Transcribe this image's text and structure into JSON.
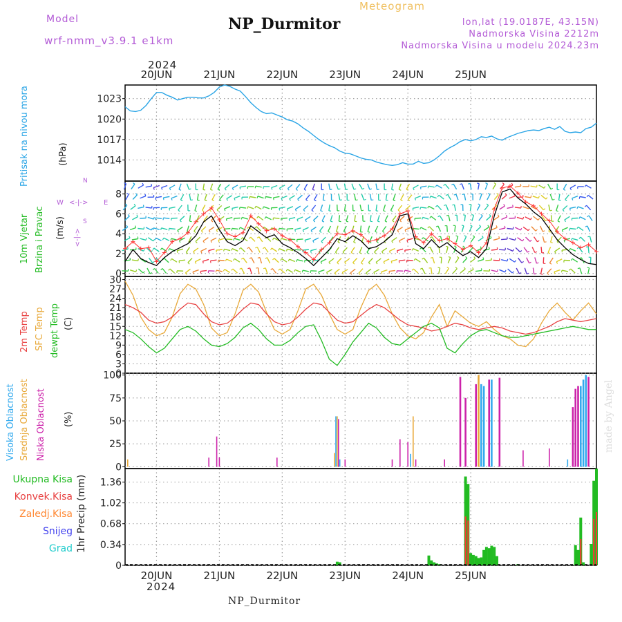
{
  "header": {
    "model_label": "Model",
    "model_name": "wrf-nmm_v3.9.1 e1km",
    "station_title": "NP_Durmitor",
    "meteogram_label": "Meteogram",
    "lonlat": "lon,lat (19.0187E, 43.15N)",
    "elevation": "Nadmorska Visina 2212m",
    "model_elevation": "Nadmorska Visina u modelu 2024.23m"
  },
  "footer": {
    "station": "NP_Durmitor",
    "made_by": "made by Angel"
  },
  "time_axis": {
    "year": "2024",
    "day_labels": [
      "20JUN",
      "21JUN",
      "22JUN",
      "23JUN",
      "24JUN",
      "25JUN"
    ]
  },
  "colors": {
    "pressure": "#2aa5e6",
    "wind_speed": "#000000",
    "wind_gust": "#ff3333",
    "temp_2m": "#e84040",
    "temp_sfc": "#e8a838",
    "dewpoint": "#22bb22",
    "cloud_high": "#33aaee",
    "cloud_mid": "#e8a838",
    "cloud_low": "#cc22aa",
    "rain_total": "#22bb22",
    "rain_conv": "#ff3333",
    "rain_frozen": "#ff8833",
    "snow": "#4444ee",
    "hail": "#22cccc",
    "grid": "#999999"
  },
  "chart_data": [
    {
      "type": "line",
      "name": "pressure",
      "ylabel_1": "Pritisak na nivou mora",
      "ylabel_2": "(hPa)",
      "yticks": [
        "1023",
        "1020",
        "1017",
        "1014"
      ],
      "ylim": [
        1010.9,
        1025.0
      ],
      "x_hours_from_20JUN00": [
        -12,
        -10,
        -8,
        -6,
        -4,
        -2,
        0,
        2,
        4,
        6,
        8,
        10,
        12,
        14,
        16,
        18,
        20,
        22,
        24,
        26,
        28,
        30,
        32,
        34,
        36,
        38,
        40,
        42,
        44,
        46,
        48,
        50,
        52,
        54,
        56,
        58,
        60,
        62,
        64,
        66,
        68,
        70,
        72,
        74,
        76,
        78,
        80,
        82,
        84,
        86,
        88,
        90,
        92,
        94,
        96,
        98,
        100,
        102,
        104,
        106,
        108,
        110,
        112,
        114,
        116,
        118,
        120,
        122,
        124,
        126,
        128,
        130,
        132,
        134,
        136,
        138,
        140,
        142,
        144,
        146,
        148,
        150,
        152,
        154,
        156,
        158,
        160,
        162,
        164,
        166,
        168
      ],
      "values": [
        1021.8,
        1021.2,
        1021.1,
        1021.3,
        1022.0,
        1023.0,
        1023.9,
        1023.9,
        1023.5,
        1023.2,
        1022.8,
        1023.0,
        1023.2,
        1023.2,
        1023.1,
        1023.1,
        1023.4,
        1023.9,
        1024.7,
        1025.0,
        1024.8,
        1024.4,
        1024.1,
        1023.3,
        1022.4,
        1021.7,
        1021.1,
        1020.8,
        1020.9,
        1020.6,
        1020.3,
        1019.9,
        1019.7,
        1019.3,
        1018.7,
        1018.2,
        1017.6,
        1017.0,
        1016.5,
        1016.1,
        1015.8,
        1015.3,
        1015.0,
        1014.9,
        1014.6,
        1014.3,
        1014.1,
        1014.0,
        1013.7,
        1013.5,
        1013.3,
        1013.2,
        1013.3,
        1013.6,
        1013.4,
        1013.4,
        1013.8,
        1013.5,
        1013.6,
        1014.0,
        1014.6,
        1015.3,
        1015.8,
        1016.2,
        1016.7,
        1017.0,
        1016.8,
        1017.0,
        1017.4,
        1017.3,
        1017.5,
        1017.1,
        1016.9,
        1017.3,
        1017.6,
        1017.9,
        1018.1,
        1018.3,
        1018.4,
        1018.3,
        1018.6,
        1018.8,
        1018.5,
        1018.9,
        1018.2,
        1018.0,
        1018.1,
        1018.0,
        1018.6,
        1018.8,
        1019.4
      ]
    },
    {
      "type": "line",
      "name": "wind",
      "ylabel_1": "10m Vjetar",
      "ylabel_2": "Brzina i Pravac",
      "ylabel_3": "(m/s)",
      "compass": {
        "n": "N",
        "s": "S",
        "w": "W",
        "e": "E",
        "arrow_h": "<-|->",
        "arrow_v": "<-|->"
      },
      "yticks": [
        "0",
        "2",
        "4",
        "6",
        "8"
      ],
      "ylim": [
        -0.3,
        9.3
      ],
      "x_hours_from_20JUN00": [
        -12,
        -9,
        -6,
        -3,
        0,
        3,
        6,
        9,
        12,
        15,
        18,
        21,
        24,
        27,
        30,
        33,
        36,
        39,
        42,
        45,
        48,
        51,
        54,
        57,
        60,
        63,
        66,
        69,
        72,
        75,
        78,
        81,
        84,
        87,
        90,
        93,
        96,
        99,
        102,
        105,
        108,
        111,
        114,
        117,
        120,
        123,
        126,
        129,
        132,
        135,
        138,
        141,
        144,
        147,
        150,
        153,
        156,
        159,
        162,
        165,
        168
      ],
      "speed": [
        1.2,
        2.4,
        1.5,
        1.1,
        0.8,
        1.6,
        2.2,
        2.6,
        3.0,
        3.8,
        5.2,
        5.8,
        4.4,
        3.2,
        2.8,
        3.3,
        4.8,
        4.2,
        3.6,
        3.9,
        3.0,
        2.6,
        2.1,
        1.5,
        0.8,
        1.6,
        2.4,
        3.5,
        3.2,
        3.8,
        3.3,
        2.5,
        2.7,
        3.2,
        3.9,
        5.8,
        6.0,
        3.0,
        2.5,
        3.4,
        2.6,
        3.1,
        2.4,
        1.8,
        2.2,
        1.6,
        2.5,
        5.8,
        8.2,
        8.5,
        7.6,
        7.0,
        6.2,
        5.6,
        4.5,
        3.4,
        2.6,
        1.9,
        1.4,
        1.0,
        0.9
      ],
      "gust": [
        2.5,
        3.2,
        2.5,
        2.6,
        1.2,
        2.1,
        3.2,
        3.5,
        4.1,
        5.2,
        6.0,
        6.6,
        5.4,
        4.0,
        3.7,
        4.1,
        5.8,
        5.0,
        4.3,
        4.5,
        3.8,
        3.4,
        2.7,
        2.1,
        1.4,
        2.4,
        3.1,
        4.0,
        3.9,
        4.3,
        3.9,
        3.2,
        3.4,
        3.8,
        4.5,
        6.0,
        6.3,
        3.7,
        3.1,
        4.0,
        3.3,
        3.5,
        3.0,
        2.4,
        2.8,
        2.1,
        3.1,
        6.5,
        8.6,
        8.8,
        8.1,
        7.2,
        6.8,
        6.0,
        5.3,
        4.2,
        3.5,
        3.1,
        2.6,
        2.9,
        2.2
      ],
      "direction_deg_from": [
        20,
        35,
        60,
        80,
        250,
        250,
        240,
        200,
        160,
        180,
        190,
        200,
        210,
        230,
        240,
        260,
        270,
        280,
        270,
        250,
        240,
        230,
        220,
        210,
        200,
        180,
        170,
        160,
        170,
        160,
        150,
        160,
        170,
        180,
        190,
        200,
        210,
        240,
        260,
        280,
        300,
        320,
        330,
        340,
        350,
        10,
        20,
        30,
        40,
        60,
        80,
        90,
        100,
        120,
        150,
        180,
        210,
        240,
        270,
        300,
        320
      ]
    },
    {
      "type": "line",
      "name": "temperature",
      "ylabel_1": "2m Temp",
      "ylabel_2": "SFC Temp",
      "ylabel_3": "dewpt Temp",
      "ylabel_4": "(C)",
      "yticks": [
        "0",
        "3",
        "6",
        "9",
        "12",
        "15",
        "18",
        "21",
        "24",
        "27",
        "30"
      ],
      "ylim": [
        0,
        31
      ],
      "series": [
        {
          "name": "2m Temp",
          "values": [
            22.0,
            21.0,
            19.5,
            17.0,
            16.0,
            16.5,
            18.0,
            20.5,
            22.5,
            22.0,
            19.0,
            16.5,
            15.5,
            16.0,
            18.0,
            20.5,
            22.5,
            22.0,
            19.0,
            16.5,
            15.5,
            16.0,
            18.0,
            20.5,
            22.5,
            22.0,
            19.5,
            17.0,
            16.0,
            16.5,
            18.5,
            20.5,
            22.0,
            21.0,
            19.0,
            17.0,
            15.5,
            15.0,
            14.5,
            13.5,
            14.0,
            15.0,
            16.0,
            15.5,
            14.5,
            14.0,
            14.5,
            15.0,
            14.5,
            13.5,
            13.0,
            12.5,
            13.0,
            14.0,
            15.0,
            16.5,
            17.5,
            17.0,
            16.5,
            17.0,
            17.5
          ]
        },
        {
          "name": "SFC Temp",
          "values": [
            29.5,
            25.0,
            18.0,
            14.0,
            12.0,
            13.0,
            18.0,
            25.5,
            28.5,
            27.0,
            22.0,
            14.5,
            12.0,
            13.0,
            19.0,
            26.5,
            28.5,
            26.0,
            19.5,
            14.0,
            12.5,
            14.0,
            20.0,
            27.0,
            28.5,
            25.0,
            19.0,
            14.0,
            12.5,
            14.0,
            21.0,
            26.5,
            28.5,
            25.0,
            19.0,
            14.5,
            12.0,
            11.0,
            13.0,
            18.0,
            22.0,
            15.0,
            20.0,
            18.0,
            16.0,
            15.0,
            16.5,
            14.0,
            12.0,
            11.0,
            9.0,
            8.5,
            11.0,
            16.0,
            20.0,
            22.5,
            19.5,
            17.0,
            20.0,
            22.5,
            19.0
          ]
        },
        {
          "name": "dewpt Temp",
          "values": [
            14.0,
            13.0,
            11.0,
            8.5,
            6.5,
            8.0,
            11.0,
            14.0,
            15.0,
            13.5,
            11.0,
            9.0,
            8.5,
            9.5,
            11.5,
            14.5,
            16.0,
            14.0,
            11.0,
            9.0,
            9.0,
            10.5,
            13.0,
            15.0,
            15.5,
            10.5,
            4.5,
            2.5,
            6.0,
            10.0,
            13.0,
            16.0,
            14.5,
            11.5,
            9.5,
            9.0,
            11.0,
            13.0,
            15.0,
            16.0,
            14.5,
            8.0,
            6.5,
            9.5,
            12.0,
            13.5,
            14.0,
            13.0,
            12.0,
            11.5,
            11.5,
            12.0,
            12.5,
            13.0,
            13.5,
            14.0,
            14.5,
            15.0,
            14.5,
            14.0,
            14.0
          ]
        }
      ],
      "x_hours_from_20JUN00": [
        -12,
        -9,
        -6,
        -3,
        0,
        3,
        6,
        9,
        12,
        15,
        18,
        21,
        24,
        27,
        30,
        33,
        36,
        39,
        42,
        45,
        48,
        51,
        54,
        57,
        60,
        63,
        66,
        69,
        72,
        75,
        78,
        81,
        84,
        87,
        90,
        93,
        96,
        99,
        102,
        105,
        108,
        111,
        114,
        117,
        120,
        123,
        126,
        129,
        132,
        135,
        138,
        141,
        144,
        147,
        150,
        153,
        156,
        159,
        162,
        165,
        168
      ]
    },
    {
      "type": "bar",
      "name": "clouds",
      "ylabel_1": "Visoka Oblacnost",
      "ylabel_2": "Srednja Oblacnost",
      "ylabel_3": "Niska Oblacnost",
      "ylabel_4": "(%)",
      "yticks": [
        "0",
        "25",
        "50",
        "75",
        "100"
      ],
      "ylim": [
        -2,
        102
      ],
      "bars": [
        {
          "x": -11,
          "layer": "mid",
          "value": 8
        },
        {
          "x": 20,
          "layer": "low",
          "value": 10
        },
        {
          "x": 23,
          "layer": "low",
          "value": 33
        },
        {
          "x": 24,
          "layer": "low",
          "value": 10
        },
        {
          "x": 46,
          "layer": "low",
          "value": 10
        },
        {
          "x": 68,
          "layer": "mid",
          "value": 15
        },
        {
          "x": 68.5,
          "layer": "high",
          "value": 55
        },
        {
          "x": 69,
          "layer": "mid",
          "value": 55
        },
        {
          "x": 69.5,
          "layer": "low",
          "value": 52
        },
        {
          "x": 70,
          "layer": "high",
          "value": 8
        },
        {
          "x": 72,
          "layer": "low",
          "value": 8
        },
        {
          "x": 90,
          "layer": "low",
          "value": 8
        },
        {
          "x": 93,
          "layer": "low",
          "value": 30
        },
        {
          "x": 96,
          "layer": "low",
          "value": 27
        },
        {
          "x": 97,
          "layer": "high",
          "value": 14
        },
        {
          "x": 98,
          "layer": "mid",
          "value": 55
        },
        {
          "x": 99,
          "layer": "low",
          "value": 8
        },
        {
          "x": 110,
          "layer": "low",
          "value": 8
        },
        {
          "x": 116,
          "layer": "low",
          "value": 98
        },
        {
          "x": 118,
          "layer": "low",
          "value": 75
        },
        {
          "x": 122,
          "layer": "low",
          "value": 90
        },
        {
          "x": 123,
          "layer": "mid",
          "value": 100
        },
        {
          "x": 124,
          "layer": "high",
          "value": 90
        },
        {
          "x": 125,
          "layer": "high",
          "value": 88
        },
        {
          "x": 127,
          "layer": "low",
          "value": 95
        },
        {
          "x": 128,
          "layer": "high",
          "value": 95
        },
        {
          "x": 131,
          "layer": "low",
          "value": 97
        },
        {
          "x": 140,
          "layer": "low",
          "value": 18
        },
        {
          "x": 150,
          "layer": "low",
          "value": 20
        },
        {
          "x": 157,
          "layer": "high",
          "value": 8
        },
        {
          "x": 159,
          "layer": "low",
          "value": 65
        },
        {
          "x": 160,
          "layer": "low",
          "value": 85
        },
        {
          "x": 161,
          "layer": "low",
          "value": 88
        },
        {
          "x": 162,
          "layer": "high",
          "value": 88
        },
        {
          "x": 163,
          "layer": "high",
          "value": 95
        },
        {
          "x": 164,
          "layer": "high",
          "value": 100
        },
        {
          "x": 165,
          "layer": "low",
          "value": 98
        }
      ]
    },
    {
      "type": "bar",
      "name": "precipitation",
      "ylabel": "1hr Precip (mm)",
      "legend": [
        "Ukupna Kisa",
        "Konvek.Kisa",
        "Zaledj.Kisa",
        "Snijeg",
        "Grad"
      ],
      "yticks": [
        "0",
        "0.34",
        "0.68",
        "1.02",
        "1.36"
      ],
      "ylim": [
        0,
        1.58
      ],
      "bars": [
        {
          "x": 69,
          "value": 0.06
        },
        {
          "x": 70,
          "value": 0.05
        },
        {
          "x": 104,
          "value": 0.16
        },
        {
          "x": 105,
          "value": 0.08
        },
        {
          "x": 106,
          "value": 0.05
        },
        {
          "x": 107,
          "value": 0.03
        },
        {
          "x": 108,
          "value": 0.02
        },
        {
          "x": 118,
          "value": 1.45
        },
        {
          "x": 119,
          "value": 1.33
        },
        {
          "x": 120,
          "value": 0.2
        },
        {
          "x": 121,
          "value": 0.17
        },
        {
          "x": 122,
          "value": 0.15
        },
        {
          "x": 123,
          "value": 0.12
        },
        {
          "x": 124,
          "value": 0.13
        },
        {
          "x": 125,
          "value": 0.25
        },
        {
          "x": 126,
          "value": 0.3
        },
        {
          "x": 127,
          "value": 0.28
        },
        {
          "x": 128,
          "value": 0.32
        },
        {
          "x": 129,
          "value": 0.3
        },
        {
          "x": 130,
          "value": 0.15
        },
        {
          "x": 138,
          "value": 0.02
        },
        {
          "x": 160,
          "value": 0.33
        },
        {
          "x": 161,
          "value": 0.25
        },
        {
          "x": 162,
          "value": 0.78
        },
        {
          "x": 163,
          "value": 0.05
        },
        {
          "x": 166,
          "value": 0.35
        },
        {
          "x": 167,
          "value": 1.38
        },
        {
          "x": 168,
          "value": 1.58
        }
      ]
    }
  ]
}
